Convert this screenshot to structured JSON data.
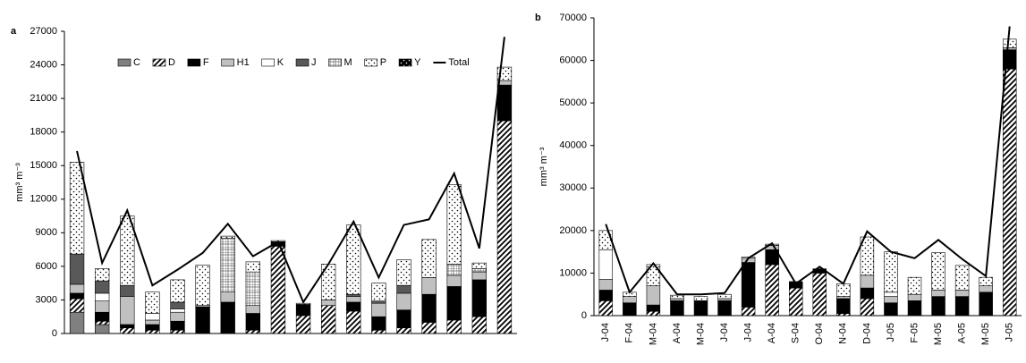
{
  "chart_data": [
    {
      "type": "bar",
      "panel": "a",
      "ylabel": "mm³ m⁻³",
      "stacked": true,
      "legend": "top",
      "categories": [
        null,
        null,
        null,
        null,
        null,
        null,
        null,
        null,
        null,
        null,
        null,
        null,
        null,
        null,
        null,
        null,
        null,
        null
      ],
      "ylim": [
        0,
        27000
      ],
      "yticks": [
        0,
        3000,
        6000,
        9000,
        12000,
        15000,
        18000,
        21000,
        24000,
        27000
      ],
      "series": [
        {
          "name": "C",
          "color": "#808080",
          "pattern": "solid",
          "values": [
            1900,
            800,
            0,
            0,
            0,
            0,
            0,
            0,
            0,
            0,
            0,
            0,
            0,
            0,
            0,
            0,
            0,
            0
          ]
        },
        {
          "name": "D",
          "color": "#ffffff",
          "pattern": "hatch",
          "values": [
            1200,
            300,
            500,
            300,
            300,
            0,
            0,
            300,
            7800,
            1600,
            2500,
            2000,
            300,
            500,
            1000,
            1200,
            1500,
            19000
          ]
        },
        {
          "name": "F",
          "color": "#000000",
          "pattern": "solid",
          "values": [
            500,
            800,
            300,
            500,
            800,
            2400,
            2800,
            1500,
            400,
            1000,
            0,
            800,
            1200,
            1600,
            2500,
            3000,
            3300,
            3200
          ]
        },
        {
          "name": "H1",
          "color": "#c0c0c0",
          "pattern": "solid",
          "values": [
            800,
            1000,
            2500,
            400,
            800,
            0,
            900,
            700,
            0,
            0,
            500,
            500,
            1200,
            1500,
            1500,
            1000,
            700,
            400
          ]
        },
        {
          "name": "K",
          "color": "#ffffff",
          "pattern": "solid",
          "values": [
            0,
            700,
            0,
            600,
            300,
            100,
            0,
            0,
            0,
            0,
            0,
            0,
            0,
            0,
            0,
            0,
            0,
            0
          ]
        },
        {
          "name": "J",
          "color": "#595959",
          "pattern": "solid",
          "values": [
            2700,
            1100,
            1000,
            0,
            600,
            0,
            0,
            0,
            0,
            0,
            0,
            200,
            200,
            700,
            0,
            0,
            0,
            0
          ]
        },
        {
          "name": "M",
          "color": "#ffffff",
          "pattern": "grid",
          "values": [
            0,
            0,
            0,
            0,
            0,
            0,
            4800,
            3000,
            0,
            0,
            0,
            0,
            0,
            0,
            0,
            1000,
            300,
            0
          ]
        },
        {
          "name": "P",
          "color": "#ffffff",
          "pattern": "dots",
          "values": [
            8200,
            1100,
            6200,
            1900,
            2000,
            3600,
            200,
            900,
            100,
            100,
            3200,
            6200,
            1600,
            2300,
            3400,
            7100,
            500,
            1200
          ]
        },
        {
          "name": "Y",
          "color": "#000000",
          "pattern": "dots",
          "values": [
            0,
            0,
            0,
            0,
            0,
            0,
            0,
            0,
            0,
            0,
            0,
            0,
            0,
            0,
            0,
            0,
            0,
            0
          ]
        },
        {
          "name": "Total",
          "type": "line",
          "color": "#000000",
          "values": [
            16300,
            6300,
            11000,
            4300,
            5700,
            7200,
            9800,
            6900,
            8200,
            2800,
            6200,
            10000,
            5000,
            9700,
            10200,
            14300,
            7600,
            26500
          ]
        }
      ]
    },
    {
      "type": "bar",
      "panel": "b",
      "ylabel": "mm³ m⁻³",
      "stacked": true,
      "categories": [
        "J-04",
        "F-04",
        "M-04",
        "A-04",
        "M-04",
        "J-04",
        "J-04",
        "A-04",
        "S-04",
        "O-04",
        "N-04",
        "D-04",
        "J-05",
        "F-05",
        "M-05",
        "A-05",
        "M-05",
        "J-05"
      ],
      "ylim": [
        0,
        70000
      ],
      "yticks": [
        0,
        10000,
        20000,
        30000,
        40000,
        50000,
        60000,
        70000
      ],
      "series": [
        {
          "color": "#808080",
          "pattern": "solid",
          "values": [
            0,
            0,
            0,
            0,
            0,
            0,
            0,
            0,
            0,
            0,
            0,
            0,
            0,
            0,
            0,
            0,
            0,
            0
          ]
        },
        {
          "color": "#ffffff",
          "pattern": "hatch",
          "values": [
            3500,
            0,
            1000,
            0,
            0,
            0,
            2000,
            12000,
            6500,
            10000,
            500,
            4000,
            0,
            0,
            0,
            0,
            0,
            58000
          ]
        },
        {
          "color": "#000000",
          "pattern": "solid",
          "values": [
            2500,
            3000,
            1500,
            3500,
            3500,
            3500,
            10500,
            3500,
            1500,
            1000,
            3500,
            2500,
            3000,
            3500,
            4500,
            4500,
            5500,
            4500
          ]
        },
        {
          "color": "#c0c0c0",
          "pattern": "solid",
          "values": [
            2500,
            1500,
            4500,
            500,
            0,
            500,
            1000,
            1000,
            0,
            0,
            500,
            3000,
            1500,
            1500,
            1500,
            1500,
            1500,
            500
          ]
        },
        {
          "color": "#ffffff",
          "pattern": "solid",
          "values": [
            7000,
            0,
            0,
            0,
            0,
            0,
            0,
            0,
            0,
            0,
            0,
            0,
            1000,
            0,
            0,
            0,
            0,
            0
          ]
        },
        {
          "color": "#595959",
          "pattern": "solid",
          "values": [
            0,
            0,
            0,
            0,
            0,
            0,
            0,
            0,
            0,
            0,
            0,
            0,
            0,
            0,
            0,
            0,
            0,
            0
          ]
        },
        {
          "color": "#ffffff",
          "pattern": "grid",
          "values": [
            0,
            0,
            0,
            0,
            0,
            0,
            0,
            0,
            0,
            0,
            0,
            0,
            0,
            0,
            0,
            0,
            0,
            0
          ]
        },
        {
          "color": "#ffffff",
          "pattern": "dots",
          "values": [
            4500,
            1000,
            5000,
            800,
            1000,
            1000,
            300,
            300,
            0,
            0,
            3000,
            9000,
            9500,
            4000,
            8800,
            5800,
            2000,
            2000
          ]
        },
        {
          "color": "#000000",
          "pattern": "dots",
          "values": [
            0,
            0,
            0,
            0,
            0,
            0,
            0,
            0,
            0,
            0,
            0,
            0,
            0,
            0,
            0,
            0,
            0,
            0
          ]
        },
        {
          "type": "line",
          "color": "#000000",
          "values": [
            21500,
            5500,
            12300,
            5000,
            5000,
            5300,
            13500,
            17000,
            7500,
            11500,
            7500,
            19800,
            15000,
            13500,
            17800,
            13300,
            9300,
            68000
          ]
        }
      ]
    }
  ]
}
